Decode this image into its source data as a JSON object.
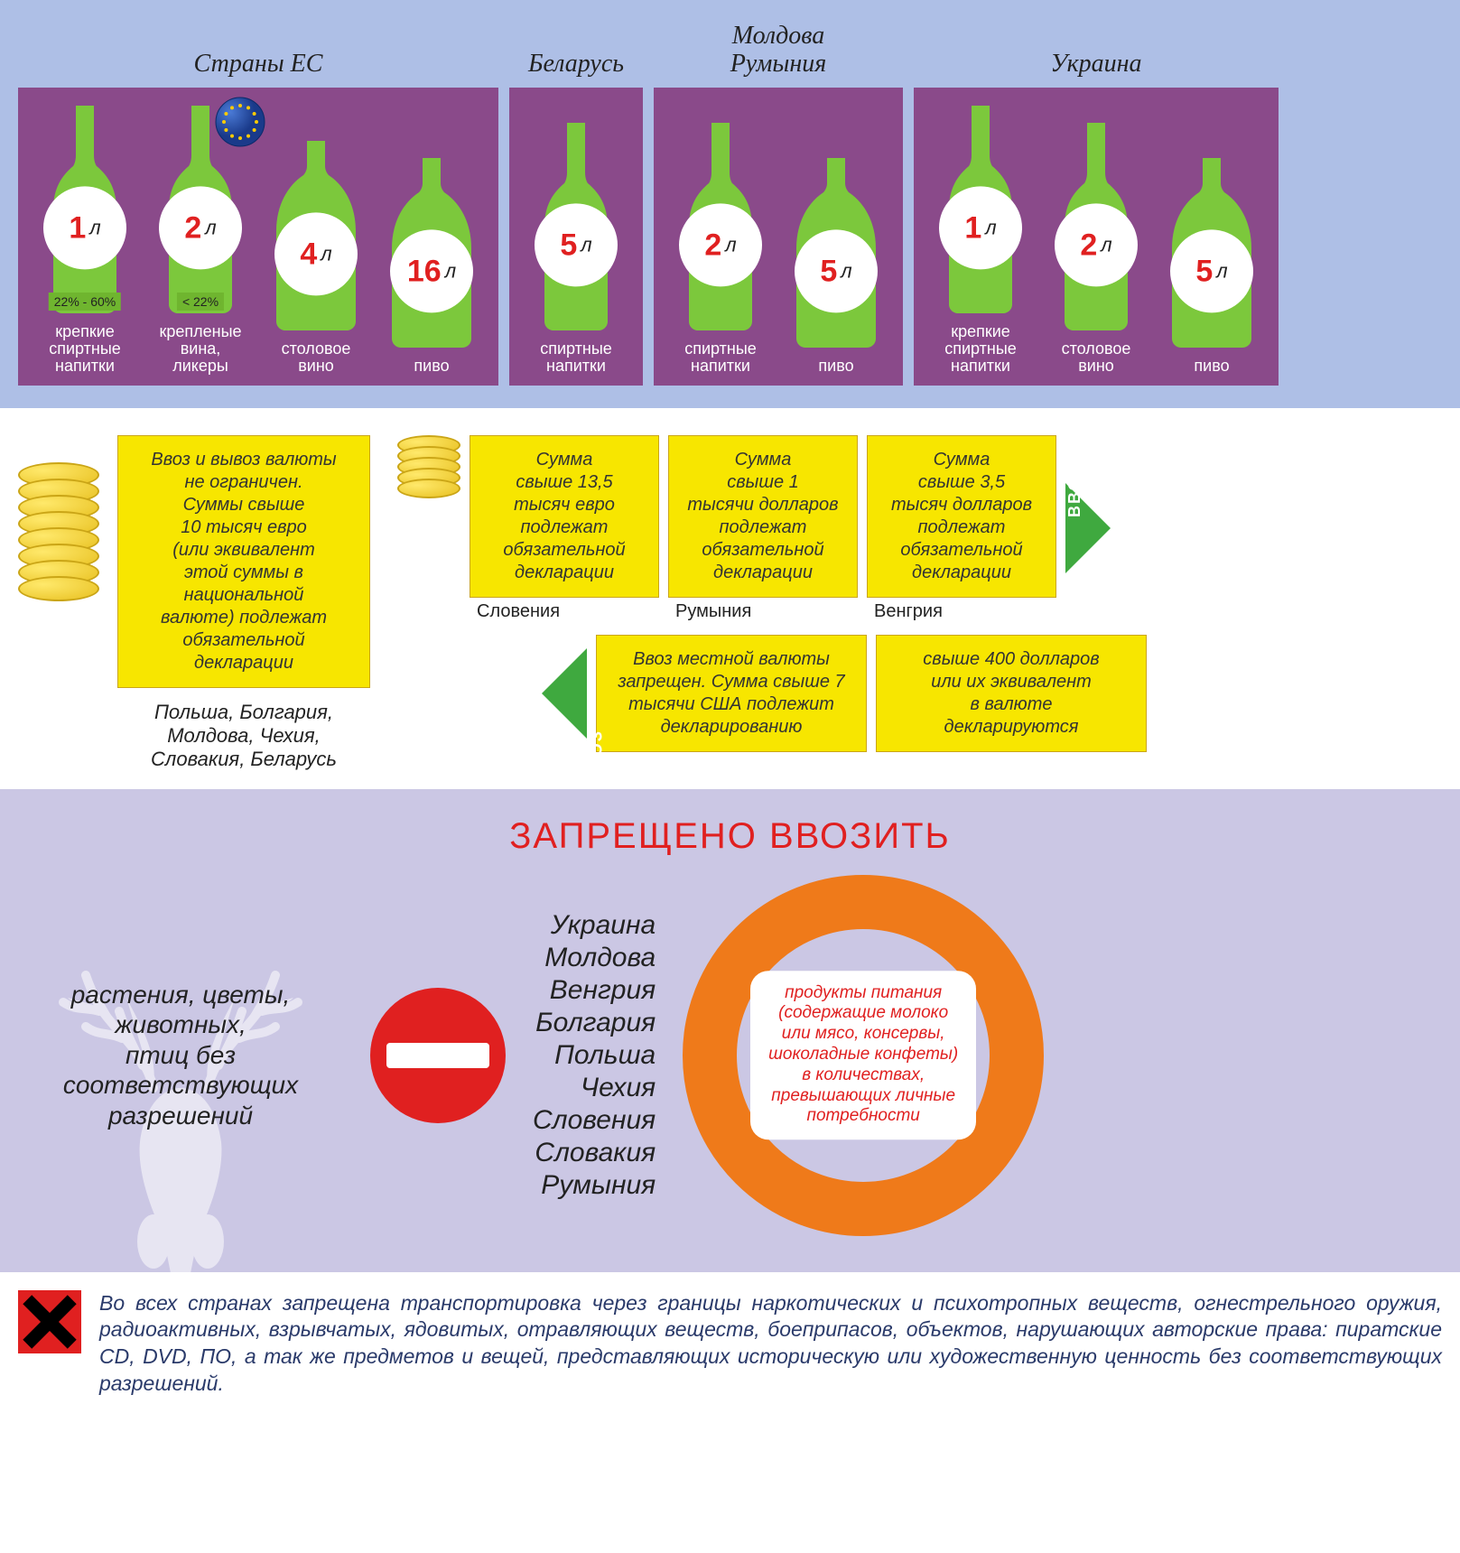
{
  "colors": {
    "section_alc_bg": "#aebfe6",
    "panel_bg": "#8a4a8a",
    "bottle_fill": "#7cc83c",
    "bottle_stroke": "#5aa028",
    "circle_bg": "#ffffff",
    "num_color": "#e02020",
    "pct_band": "#6fb52f",
    "yellow_box_bg": "#f7e600",
    "yellow_box_border": "#caa516",
    "arrow_green": "#3fa93f",
    "forbid_bg": "#cbc7e4",
    "forbid_title": "#e02020",
    "stop_red": "#e02020",
    "ring_orange": "#ef7a1a",
    "footer_text": "#2a3a6a"
  },
  "typography": {
    "country_title_fontsize": 28,
    "bottle_num_fontsize": 34,
    "bottle_caption_fontsize": 18,
    "ybox_fontsize": 20,
    "forbid_title_fontsize": 40,
    "deer_fontsize": 28,
    "country_list_fontsize": 30,
    "ring_text_fontsize": 19,
    "footer_fontsize": 23
  },
  "alc": {
    "unit": "л",
    "groups": [
      {
        "title": "Страны ЕС",
        "show_eu_flag": true,
        "bottles": [
          {
            "num": "1",
            "pct": "22% - 60%",
            "caption": "крепкие\nспиртные\nнапитки",
            "shape": "wine"
          },
          {
            "num": "2",
            "pct": "< 22%",
            "caption": "крепленые\nвина,\nликеры",
            "shape": "wine"
          },
          {
            "num": "4",
            "caption": "столовое\nвино",
            "shape": "round"
          },
          {
            "num": "16",
            "caption": "пиво",
            "shape": "round"
          }
        ]
      },
      {
        "title": "Беларусь",
        "bottles": [
          {
            "num": "5",
            "caption": "спиртные\nнапитки",
            "shape": "wine"
          }
        ]
      },
      {
        "title": "Молдова\nРумыния",
        "bottles": [
          {
            "num": "2",
            "caption": "спиртные\nнапитки",
            "shape": "wine"
          },
          {
            "num": "5",
            "caption": "пиво",
            "shape": "round"
          }
        ]
      },
      {
        "title": "Украина",
        "bottles": [
          {
            "num": "1",
            "caption": "крепкие\nспиртные\nнапитки",
            "shape": "wine"
          },
          {
            "num": "2",
            "caption": "столовое\nвино",
            "shape": "wine"
          },
          {
            "num": "5",
            "caption": "пиво",
            "shape": "round"
          }
        ]
      }
    ]
  },
  "currency": {
    "left_box": "Ввоз и вывоз валюты\nне ограничен.\nСуммы свыше\n10 тысяч евро\n(или эквивалент\nэтой суммы в\nнациональной\nвалюте) подлежат\nобязательной\nдекларации",
    "left_countries": "Польша, Болгария,\nМолдова, Чехия,\nСловакия, Беларусь",
    "in_label": "ВВОЗ",
    "out_label": "ВЫВОЗ",
    "in_boxes": [
      {
        "text": "Сумма\nсвыше 13,5\nтысяч евро\nподлежат\nобязательной\nдекларации",
        "country": "Словения"
      },
      {
        "text": "Сумма\nсвыше 1\nтысячи долларов\nподлежат\nобязательной\nдекларации",
        "country": "Румыния"
      },
      {
        "text": "Сумма\nсвыше 3,5\nтысяч долларов\nподлежат\nобязательной\nдекларации",
        "country": "Венгрия"
      }
    ],
    "out_boxes": [
      {
        "text": "Ввоз местной валюты\nзапрещен. Сумма свыше 7\nтысячи США подлежит\nдекларированию"
      },
      {
        "text": "свыше 400 долларов\nили их эквивалент\nв валюте\nдекларируются"
      }
    ]
  },
  "forbid": {
    "title": "ЗАПРЕЩЕНО ВВОЗИТЬ",
    "deer_text": "растения, цветы,\nживотных,\nптиц без\nсоответствующих\nразрешений",
    "countries": "Украина\nМолдова\nВенгрия\nБолгария\nПольша\nЧехия\nСловения\nСловакия\nРумыния",
    "ring_text": "продукты питания\n(содержащие молоко\nили мясо, консервы,\nшоколадные конфеты)\nв количествах,\nпревышающих личные\nпотребности"
  },
  "footer": "Во всех странах запрещена транспортировка через границы наркотических и психотропных веществ, огнестрельного оружия, радиоактивных, взрывчатых, ядовитых, отравляющих веществ, боеприпасов, объектов, нарушающих авторские права: пиратские CD, DVD, ПО, а так же предметов и вещей, представляющих историческую или художественную ценность без соответствующих разрешений."
}
